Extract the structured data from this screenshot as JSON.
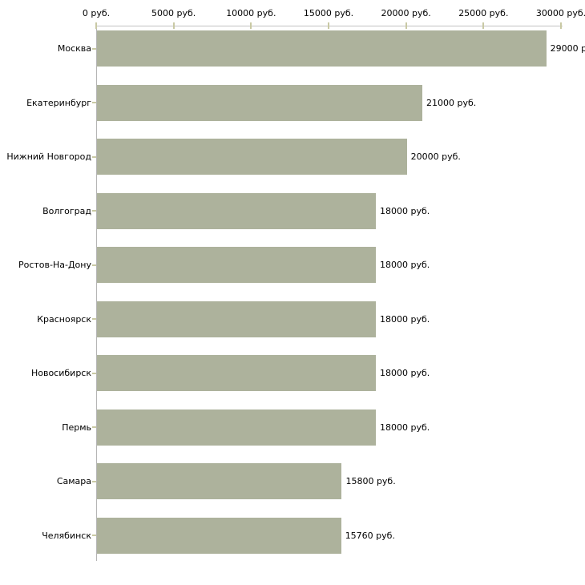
{
  "chart_data": {
    "type": "bar",
    "orientation": "horizontal",
    "categories": [
      "Москва",
      "Екатеринбург",
      "Нижний Новгород",
      "Волгоград",
      "Ростов-На-Дону",
      "Красноярск",
      "Новосибирск",
      "Пермь",
      "Самара",
      "Челябинск"
    ],
    "values": [
      29000,
      21000,
      20000,
      18000,
      18000,
      18000,
      18000,
      18000,
      15800,
      15760
    ],
    "value_labels": [
      "29000 р",
      "21000 руб.",
      "20000 руб.",
      "18000 руб.",
      "18000 руб.",
      "18000 руб.",
      "18000 руб.",
      "18000 руб.",
      "15800 руб.",
      "15760 руб."
    ],
    "x_axis": {
      "position": "top",
      "min": 0,
      "max": 30000,
      "ticks": [
        0,
        5000,
        10000,
        15000,
        20000,
        25000,
        30000
      ],
      "tick_labels": [
        "0 руб.",
        "5000 руб.",
        "10000 руб.",
        "15000 руб.",
        "20000 руб.",
        "25000 руб.",
        "30000 руб."
      ]
    },
    "grid": false,
    "colors": {
      "bar_fill": "#adb29c",
      "axis_line": "#c2c2c2",
      "tick_mark": "#c9c9a4",
      "text": "#000000",
      "background": "#ffffff"
    }
  }
}
